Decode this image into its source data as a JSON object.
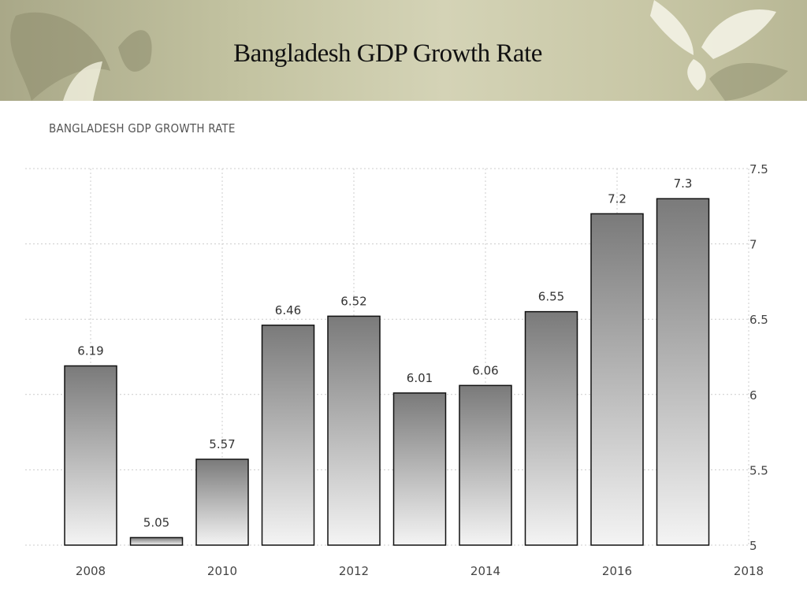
{
  "slide": {
    "title": "Bangladesh GDP Growth Rate"
  },
  "colors": {
    "banner": "#c3c3a1",
    "bar_top": "#7a7a7a",
    "bar_bottom": "#f4f4f4",
    "bar_stroke": "#111111",
    "grid": "#cccccc"
  },
  "chart_data": {
    "type": "bar",
    "title": "BANGLADESH GDP GROWTH RATE",
    "xlabel": "",
    "ylabel": "",
    "categories": [
      "2008",
      "2009",
      "2010",
      "2011",
      "2012",
      "2013",
      "2014",
      "2015",
      "2016",
      "2017"
    ],
    "values": [
      6.19,
      5.05,
      5.57,
      6.46,
      6.52,
      6.01,
      6.06,
      6.55,
      7.2,
      7.3
    ],
    "data_labels": [
      "6.19",
      "5.05",
      "5.57",
      "6.46",
      "6.52",
      "6.01",
      "6.06",
      "6.55",
      "7.2",
      "7.3"
    ],
    "x_ticks": [
      "2008",
      "2010",
      "2012",
      "2014",
      "2016",
      "2018"
    ],
    "y_ticks": [
      "5",
      "5.5",
      "6",
      "6.5",
      "7",
      "7.5"
    ],
    "ylim": [
      5,
      7.5
    ],
    "y_axis_side": "right",
    "grid": true
  }
}
